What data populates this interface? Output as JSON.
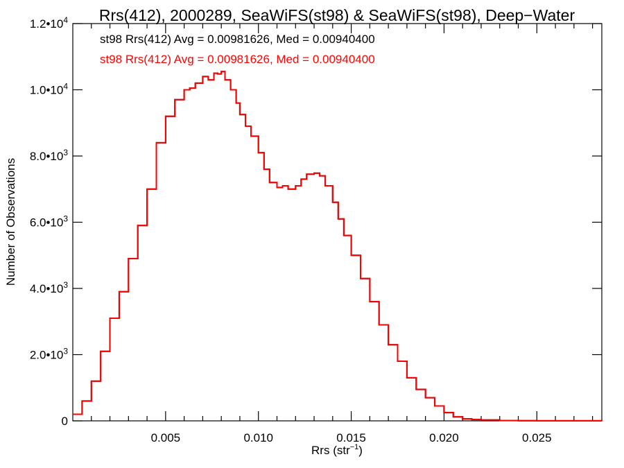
{
  "chart_data": {
    "type": "line",
    "step": true,
    "title": "Rrs(412), 2000289, SeaWiFS(st98) & SeaWiFS(st98), Deep−Water",
    "xlabel": "Rrs (str",
    "xlabel_sup": "−1",
    "xlabel_end": ")",
    "ylabel": "Number of Observations",
    "xlim": [
      0.0,
      0.0285
    ],
    "ylim": [
      0,
      12000
    ],
    "grid": false,
    "x_ticks": [
      {
        "value": 0.005,
        "label": "0.005"
      },
      {
        "value": 0.01,
        "label": "0.010"
      },
      {
        "value": 0.015,
        "label": "0.015"
      },
      {
        "value": 0.02,
        "label": "0.020"
      },
      {
        "value": 0.025,
        "label": "0.025"
      }
    ],
    "y_ticks": [
      {
        "value": 0,
        "base": "0",
        "exp": ""
      },
      {
        "value": 2000,
        "base": "2.0•10",
        "exp": "3"
      },
      {
        "value": 4000,
        "base": "4.0•10",
        "exp": "3"
      },
      {
        "value": 6000,
        "base": "6.0•10",
        "exp": "3"
      },
      {
        "value": 8000,
        "base": "8.0•10",
        "exp": "3"
      },
      {
        "value": 10000,
        "base": "1.0•10",
        "exp": "4"
      },
      {
        "value": 12000,
        "base": "1.2•10",
        "exp": "4"
      }
    ],
    "annotations": [
      {
        "text": "st98 Rrs(412) Avg = 0.00981626, Med = 0.00940400",
        "color": "#000000"
      },
      {
        "text": "st98 Rrs(412) Avg = 0.00981626, Med = 0.00940400",
        "color": "#ff0000"
      }
    ],
    "series": [
      {
        "color_top": "#ff0000",
        "color_under": "#000000",
        "x": [
          0.0,
          0.0005,
          0.001,
          0.0015,
          0.002,
          0.0025,
          0.003,
          0.0035,
          0.004,
          0.0045,
          0.005,
          0.0055,
          0.006,
          0.0063,
          0.0066,
          0.007,
          0.0073,
          0.0076,
          0.0078,
          0.008,
          0.0082,
          0.0085,
          0.0088,
          0.009,
          0.0093,
          0.0096,
          0.01,
          0.0103,
          0.0106,
          0.011,
          0.0113,
          0.0116,
          0.012,
          0.0123,
          0.0126,
          0.013,
          0.0133,
          0.0136,
          0.014,
          0.0143,
          0.0146,
          0.015,
          0.0155,
          0.016,
          0.0165,
          0.017,
          0.0175,
          0.018,
          0.0185,
          0.019,
          0.0195,
          0.02,
          0.0205,
          0.021,
          0.0215,
          0.022,
          0.023,
          0.024,
          0.025,
          0.026,
          0.0285
        ],
        "y": [
          200,
          600,
          1200,
          2100,
          3100,
          3900,
          4900,
          5900,
          7000,
          8400,
          9200,
          9700,
          10000,
          10050,
          10200,
          10400,
          10300,
          10500,
          10480,
          10550,
          10300,
          10000,
          9600,
          9250,
          8900,
          8600,
          8100,
          7600,
          7200,
          7050,
          7100,
          7000,
          7100,
          7300,
          7450,
          7480,
          7400,
          7100,
          6600,
          6100,
          5600,
          5000,
          4300,
          3600,
          2900,
          2300,
          1800,
          1300,
          950,
          700,
          450,
          250,
          120,
          60,
          40,
          25,
          10,
          5,
          3,
          2,
          0
        ]
      }
    ]
  }
}
